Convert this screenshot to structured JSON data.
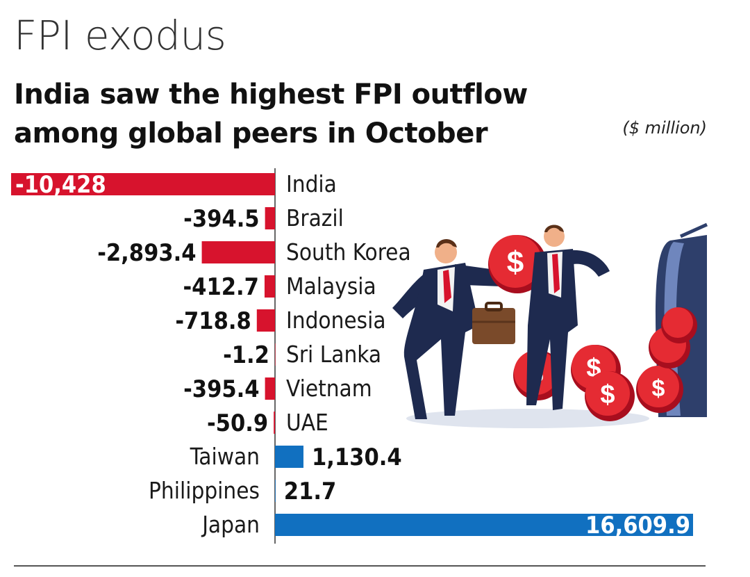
{
  "header": {
    "kicker": "FPI exodus",
    "headline": "India saw the highest FPI outflow among global peers in October",
    "unit": "($ million)"
  },
  "colors": {
    "negative": "#d7132d",
    "positive": "#1170c0",
    "axis": "#333333"
  },
  "chart_data": {
    "type": "bar",
    "orientation": "horizontal",
    "title": "India saw the highest FPI outflow among global peers in October",
    "unit": "($ million)",
    "categories": [
      "India",
      "Brazil",
      "South Korea",
      "Malaysia",
      "Indonesia",
      "Sri Lanka",
      "Vietnam",
      "UAE",
      "Taiwan",
      "Philippines",
      "Japan"
    ],
    "values": [
      -10428,
      -394.5,
      -2893.4,
      -412.7,
      -718.8,
      -1.2,
      -395.4,
      -50.9,
      1130.4,
      21.7,
      16609.9
    ],
    "value_labels": [
      "-10,428",
      "-394.5",
      "-2,893.4",
      "-412.7",
      "-718.8",
      "-1.2",
      "-395.4",
      "-50.9",
      "1,130.4",
      "21.7",
      "16,609.9"
    ],
    "xlim": [
      -10428,
      16609.9
    ],
    "grid": false,
    "legend": "none"
  }
}
